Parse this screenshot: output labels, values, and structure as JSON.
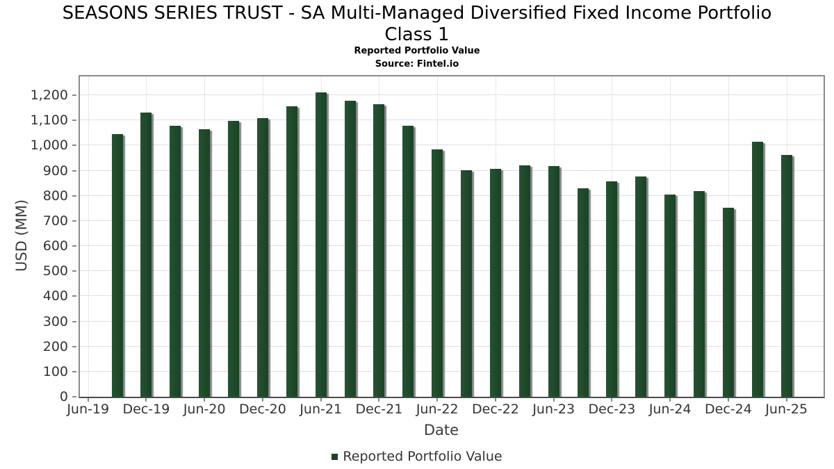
{
  "title_line1": "SEASONS SERIES TRUST - SA Multi-Managed Diversified Fixed Income Portfolio",
  "title_line2": "Class 1",
  "chart_data": {
    "type": "bar",
    "title": "SEASONS SERIES TRUST - SA Multi-Managed Diversified Fixed Income Portfolio Class 1",
    "subtitle": "Reported Portfolio Value",
    "source": "Source: Fintel.io",
    "xlabel": "Date",
    "ylabel": "USD (MM)",
    "ylim": [
      0,
      1275
    ],
    "ytick_step": 100,
    "ytick_max": 1200,
    "grid": true,
    "legend_position": "bottom",
    "legend_label": "Reported Portfolio Value",
    "bar_color": "#1d4a2a",
    "shadow_color": "#8a8a8a",
    "x_tick_labels": [
      "Jun-19",
      "Dec-19",
      "Jun-20",
      "Dec-20",
      "Jun-21",
      "Dec-21",
      "Jun-22",
      "Dec-22",
      "Jun-23",
      "Dec-23",
      "Jun-24",
      "Dec-24",
      "Jun-25"
    ],
    "categories": [
      "Sep-19",
      "Dec-19",
      "Mar-20",
      "Jun-20",
      "Sep-20",
      "Dec-20",
      "Mar-21",
      "Jun-21",
      "Sep-21",
      "Dec-21",
      "Mar-22",
      "Jun-22",
      "Sep-22",
      "Dec-22",
      "Mar-23",
      "Jun-23",
      "Sep-23",
      "Dec-23",
      "Mar-24",
      "Jun-24",
      "Sep-24",
      "Dec-24",
      "Mar-25",
      "Jun-25"
    ],
    "values": [
      1046,
      1131,
      1080,
      1066,
      1097,
      1110,
      1155,
      1212,
      1178,
      1165,
      1078,
      984,
      902,
      906,
      921,
      919,
      831,
      857,
      876,
      805,
      818,
      753,
      1016,
      962
    ]
  }
}
